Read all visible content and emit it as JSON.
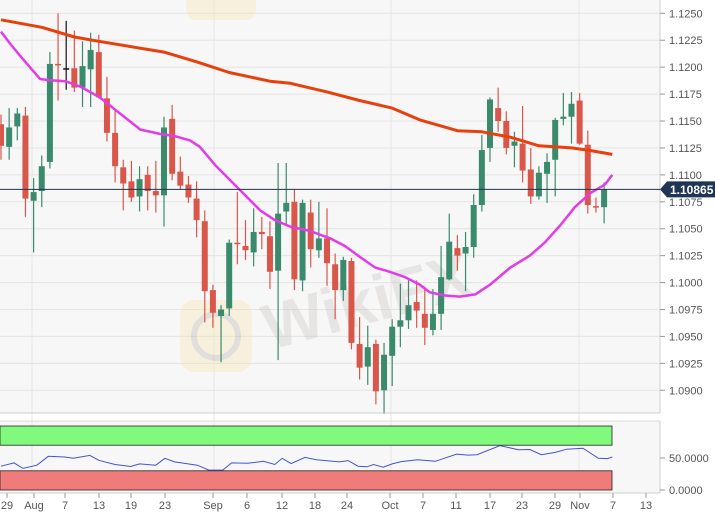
{
  "chart_data": [
    {
      "type": "candlestick",
      "colors": {
        "up": "#3a8a6c",
        "down": "#d9574a",
        "doji": "#111111",
        "ma_slow": "#e8400c",
        "ma_fast": "#e23ce8",
        "last_price_tag": "#1e3553"
      },
      "y_ticks": [
        "1.1250",
        "1.1225",
        "1.1200",
        "1.1175",
        "1.1150",
        "1.1125",
        "1.1100",
        "1.1075",
        "1.1050",
        "1.1025",
        "1.1000",
        "1.0975",
        "1.0950",
        "1.0925",
        "1.0900"
      ],
      "ylim": [
        1.0875,
        1.1262
      ],
      "last_price": "1.10865",
      "grid": true,
      "x_ticks": [
        "29",
        "Aug",
        "7",
        "13",
        "19",
        "23",
        "Sep",
        "6",
        "12",
        "18",
        "24",
        "Oct",
        "7",
        "11",
        "17",
        "23",
        "29",
        "Nov",
        "7",
        "13"
      ],
      "candles_ohlc": [
        [
          1.1147,
          1.1156,
          1.1114,
          1.1127
        ],
        [
          1.1126,
          1.1162,
          1.1114,
          1.1144
        ],
        [
          1.1145,
          1.1162,
          1.1132,
          1.1157
        ],
        [
          1.1155,
          1.1163,
          1.1061,
          1.1078
        ],
        [
          1.1076,
          1.1097,
          1.1028,
          1.1084
        ],
        [
          1.1085,
          1.1118,
          1.107,
          1.1108
        ],
        [
          1.1112,
          1.1214,
          1.1106,
          1.1203
        ],
        [
          1.1203,
          1.125,
          1.1169,
          1.1202
        ],
        [
          1.1199,
          1.1243,
          1.1179,
          1.1199
        ],
        [
          1.1199,
          1.1234,
          1.1177,
          1.1181
        ],
        [
          1.1181,
          1.1224,
          1.1163,
          1.1201
        ],
        [
          1.1198,
          1.1232,
          1.1163,
          1.1216
        ],
        [
          1.1214,
          1.123,
          1.1171,
          1.1172
        ],
        [
          1.1171,
          1.1191,
          1.1131,
          1.1139
        ],
        [
          1.1139,
          1.116,
          1.1093,
          1.1108
        ],
        [
          1.1107,
          1.1114,
          1.1067,
          1.1092
        ],
        [
          1.1094,
          1.1113,
          1.1075,
          1.1079
        ],
        [
          1.108,
          1.1108,
          1.1066,
          1.1096
        ],
        [
          1.11,
          1.1108,
          1.1067,
          1.1085
        ],
        [
          1.1085,
          1.1113,
          1.1065,
          1.1081
        ],
        [
          1.1081,
          1.1154,
          1.1052,
          1.1144
        ],
        [
          1.1152,
          1.1165,
          1.1095,
          1.1101
        ],
        [
          1.1103,
          1.1117,
          1.1086,
          1.109
        ],
        [
          1.1091,
          1.1099,
          1.1074,
          1.1079
        ],
        [
          1.1078,
          1.1094,
          1.1042,
          1.1058
        ],
        [
          1.1057,
          1.1067,
          1.0963,
          1.0992
        ],
        [
          1.0993,
          1.0998,
          1.0958,
          1.0972
        ],
        [
          1.0969,
          1.0979,
          1.0926,
          1.0975
        ],
        [
          1.0976,
          1.104,
          1.0969,
          1.1037
        ],
        [
          1.1037,
          1.1084,
          1.1017,
          1.1036
        ],
        [
          1.1034,
          1.1058,
          1.1021,
          1.103
        ],
        [
          1.1028,
          1.1069,
          1.1015,
          1.1047
        ],
        [
          1.1047,
          1.1061,
          1.1031,
          1.1045
        ],
        [
          1.1043,
          1.1057,
          1.0994,
          1.101
        ],
        [
          1.1011,
          1.1111,
          1.0928,
          1.1064
        ],
        [
          1.1066,
          1.1111,
          1.1053,
          1.1074
        ],
        [
          1.1075,
          1.1087,
          1.0993,
          1.1003
        ],
        [
          1.1002,
          1.1077,
          1.0992,
          1.1074
        ],
        [
          1.1065,
          1.1077,
          1.1014,
          1.1031
        ],
        [
          1.103,
          1.1075,
          1.1023,
          1.1041
        ],
        [
          1.1041,
          1.1069,
          1.0997,
          1.1018
        ],
        [
          1.1017,
          1.1027,
          1.0966,
          1.0993
        ],
        [
          1.0993,
          1.1024,
          1.0983,
          1.1021
        ],
        [
          1.102,
          1.1023,
          1.0938,
          1.0944
        ],
        [
          1.0943,
          1.0968,
          1.091,
          1.0921
        ],
        [
          1.0922,
          1.096,
          1.0905,
          1.094
        ],
        [
          1.0943,
          1.0947,
          1.0887,
          1.0899
        ],
        [
          1.09,
          1.0944,
          1.0878,
          1.0933
        ],
        [
          1.0932,
          1.0966,
          1.0904,
          1.0959
        ],
        [
          1.0959,
          1.0999,
          1.094,
          1.0965
        ],
        [
          1.0965,
          1.1002,
          1.0957,
          1.0979
        ],
        [
          1.0982,
          1.1002,
          1.0958,
          1.0974
        ],
        [
          1.0971,
          1.0995,
          1.0942,
          1.0958
        ],
        [
          1.0956,
          1.0994,
          1.0951,
          1.0971
        ],
        [
          1.0971,
          1.1034,
          1.0956,
          1.1005
        ],
        [
          1.1003,
          1.1064,
          1.1002,
          1.1038
        ],
        [
          1.1032,
          1.1044,
          1.1011,
          1.1025
        ],
        [
          1.1027,
          1.1047,
          1.0992,
          1.1033
        ],
        [
          1.1033,
          1.1082,
          1.1023,
          1.1072
        ],
        [
          1.1072,
          1.1137,
          1.1066,
          1.1123
        ],
        [
          1.1125,
          1.1172,
          1.1112,
          1.117
        ],
        [
          1.1162,
          1.1181,
          1.114,
          1.115
        ],
        [
          1.115,
          1.1159,
          1.1119,
          1.1125
        ],
        [
          1.1127,
          1.114,
          1.1107,
          1.1131
        ],
        [
          1.1129,
          1.1164,
          1.1093,
          1.1104
        ],
        [
          1.1105,
          1.1125,
          1.1073,
          1.108
        ],
        [
          1.108,
          1.1108,
          1.1077,
          1.1102
        ],
        [
          1.1101,
          1.112,
          1.1074,
          1.1112
        ],
        [
          1.1114,
          1.1153,
          1.108,
          1.1151
        ],
        [
          1.1152,
          1.1176,
          1.1146,
          1.1154
        ],
        [
          1.1154,
          1.1177,
          1.1129,
          1.1166
        ],
        [
          1.1169,
          1.1176,
          1.1128,
          1.1129
        ],
        [
          1.1128,
          1.1141,
          1.1064,
          1.1072
        ],
        [
          1.1071,
          1.1079,
          1.1065,
          1.107
        ],
        [
          1.107,
          1.1093,
          1.1055,
          1.10865
        ]
      ],
      "ma_slow": [
        [
          0,
          1.1244
        ],
        [
          5,
          1.1237
        ],
        [
          9,
          1.1228
        ],
        [
          12,
          1.1224
        ],
        [
          20,
          1.1214
        ],
        [
          24,
          1.1205
        ],
        [
          28,
          1.1195
        ],
        [
          33,
          1.1187
        ],
        [
          35.5,
          1.1185
        ],
        [
          40,
          1.1177
        ],
        [
          44,
          1.1169
        ],
        [
          48,
          1.1162
        ],
        [
          51.4,
          1.1151
        ],
        [
          56,
          1.1141
        ],
        [
          59,
          1.114
        ],
        [
          62.5,
          1.1135
        ],
        [
          66,
          1.1127
        ],
        [
          70,
          1.1125
        ],
        [
          72,
          1.1123
        ],
        [
          75,
          1.1119
        ]
      ],
      "ma_fast": [
        [
          0,
          1.1233
        ],
        [
          1.1,
          1.1222
        ],
        [
          2.3,
          1.1211
        ],
        [
          4.8,
          1.1189
        ],
        [
          5.8,
          1.1188
        ],
        [
          7.9,
          1.1187
        ],
        [
          9.7,
          1.1182
        ],
        [
          12.1,
          1.1172
        ],
        [
          14.6,
          1.1157
        ],
        [
          17.1,
          1.1142
        ],
        [
          19.5,
          1.1138
        ],
        [
          21.3,
          1.1136
        ],
        [
          23.2,
          1.1132
        ],
        [
          24.4,
          1.1126
        ],
        [
          26.3,
          1.1109
        ],
        [
          29.3,
          1.1086
        ],
        [
          31.8,
          1.1067
        ],
        [
          33.6,
          1.1058
        ],
        [
          35.5,
          1.1052
        ],
        [
          37.9,
          1.1048
        ],
        [
          40.4,
          1.1041
        ],
        [
          42.2,
          1.1034
        ],
        [
          44,
          1.1024
        ],
        [
          45.9,
          1.1014
        ],
        [
          47.7,
          1.101
        ],
        [
          49.6,
          1.1005
        ],
        [
          51.4,
          1.0998
        ],
        [
          52.6,
          1.0991
        ],
        [
          54.5,
          1.0988
        ],
        [
          56.3,
          1.0987
        ],
        [
          58.2,
          1.0989
        ],
        [
          60,
          1.0998
        ],
        [
          62.5,
          1.1014
        ],
        [
          64.9,
          1.1025
        ],
        [
          66.7,
          1.1037
        ],
        [
          68.6,
          1.1053
        ],
        [
          70.4,
          1.107
        ],
        [
          72.3,
          1.1083
        ],
        [
          74.1,
          1.1091
        ],
        [
          75,
          1.11
        ]
      ]
    },
    {
      "type": "line",
      "colors": {
        "line": "#4352d4",
        "overbought": "#80f97c",
        "oversold": "#f07b7b"
      },
      "y_ticks": [
        "50.0000",
        "0.0000"
      ],
      "ylim": [
        0,
        100
      ],
      "bands": {
        "overbought": [
          70,
          100
        ],
        "oversold": [
          0,
          30
        ]
      },
      "values": [
        [
          0,
          37.2
        ],
        [
          1.6,
          42.3
        ],
        [
          2.7,
          33.7
        ],
        [
          4.4,
          38.8
        ],
        [
          5.8,
          52.6
        ],
        [
          7.8,
          51.5
        ],
        [
          8.9,
          49.5
        ],
        [
          10.9,
          54.1
        ],
        [
          12,
          46.4
        ],
        [
          14,
          39.8
        ],
        [
          15.9,
          36.7
        ],
        [
          17,
          40.8
        ],
        [
          19,
          38.8
        ],
        [
          20.1,
          49.5
        ],
        [
          21.3,
          43.9
        ],
        [
          24.1,
          38.8
        ],
        [
          25.5,
          31.1
        ],
        [
          27.2,
          31.1
        ],
        [
          28.3,
          42.3
        ],
        [
          30.3,
          41.8
        ],
        [
          32.2,
          44.9
        ],
        [
          33.6,
          39.8
        ],
        [
          34.5,
          49.5
        ],
        [
          35.6,
          41.3
        ],
        [
          37.3,
          51
        ],
        [
          38.7,
          47.4
        ],
        [
          41.5,
          43.9
        ],
        [
          42.6,
          45.9
        ],
        [
          43.8,
          37.2
        ],
        [
          44.9,
          36.2
        ],
        [
          45.7,
          39.8
        ],
        [
          46.9,
          35.7
        ],
        [
          48,
          40.8
        ],
        [
          49.1,
          44.4
        ],
        [
          51.1,
          47.4
        ],
        [
          53.3,
          44.9
        ],
        [
          55.9,
          56.1
        ],
        [
          57.3,
          54.6
        ],
        [
          58.4,
          55.1
        ],
        [
          61.2,
          69.4
        ],
        [
          63.5,
          62.8
        ],
        [
          64.9,
          63.3
        ],
        [
          66.3,
          55.1
        ],
        [
          68,
          58.7
        ],
        [
          69.4,
          63.8
        ],
        [
          71.4,
          65.3
        ],
        [
          73.3,
          49.5
        ],
        [
          74.4,
          49
        ],
        [
          75,
          51.5
        ]
      ]
    }
  ],
  "watermark": "WikiFX"
}
